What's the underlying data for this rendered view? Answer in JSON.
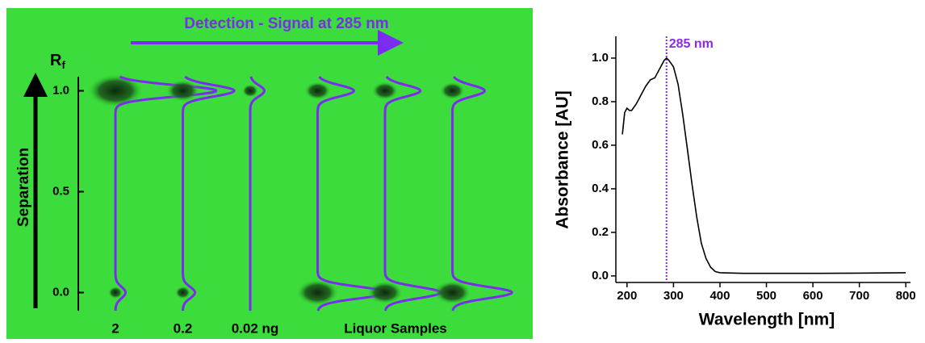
{
  "chart_data": [
    {
      "type": "densitogram",
      "title": "Detection - Signal at 285 nm",
      "ylabel": "R",
      "ylabel_subscript": "f",
      "side_label": "Separation",
      "ylim": [
        -0.09,
        1.07
      ],
      "yticks": [
        {
          "value": 0,
          "label": "0.0"
        },
        {
          "value": 0.5,
          "label": "0.5"
        },
        {
          "value": 1,
          "label": "1.0"
        }
      ],
      "trace_color": "#7b2cf0",
      "group_label": "Liquor Samples",
      "lanes": [
        {
          "label": "2",
          "peaks": [
            {
              "rf": 1,
              "signal": 1.0
            },
            {
              "rf": 0,
              "signal": 0.1
            }
          ]
        },
        {
          "label": "0.2",
          "peaks": [
            {
              "rf": 1,
              "signal": 0.51
            },
            {
              "rf": 0,
              "signal": 0.12
            }
          ]
        },
        {
          "label": "0.02 ng",
          "peaks": [
            {
              "rf": 1,
              "signal": 0.14
            }
          ]
        },
        {
          "label": null,
          "peaks": [
            {
              "rf": 1,
              "signal": 0.36
            },
            {
              "rf": 0,
              "signal": 0.7
            }
          ]
        },
        {
          "label": null,
          "peaks": [
            {
              "rf": 1,
              "signal": 0.35
            },
            {
              "rf": 0,
              "signal": 0.55
            }
          ]
        },
        {
          "label": null,
          "peaks": [
            {
              "rf": 1,
              "signal": 0.32
            },
            {
              "rf": 0,
              "signal": 0.59
            }
          ]
        }
      ]
    },
    {
      "type": "line",
      "xlabel": "Wavelength [nm]",
      "ylabel": "Absorbance [AU]",
      "xlim": [
        176,
        810
      ],
      "ylim": [
        -0.03,
        1.1
      ],
      "xticks": [
        200,
        300,
        400,
        500,
        600,
        700,
        800
      ],
      "yticks": [
        {
          "value": 0,
          "label": "0.0"
        },
        {
          "value": 0.2,
          "label": "0.2"
        },
        {
          "value": 0.4,
          "label": "0.4"
        },
        {
          "value": 0.6,
          "label": "0.6"
        },
        {
          "value": 0.8,
          "label": "0.8"
        },
        {
          "value": 1,
          "label": "1.0"
        }
      ],
      "annotation": {
        "text": "285 nm",
        "x": 285,
        "color": "#8a2be2"
      },
      "color": "#000000",
      "x": [
        190,
        195,
        200,
        205,
        210,
        220,
        230,
        240,
        250,
        260,
        270,
        280,
        285,
        290,
        300,
        310,
        320,
        330,
        340,
        350,
        360,
        370,
        380,
        390,
        400,
        450,
        500,
        600,
        700,
        800
      ],
      "values": [
        0.65,
        0.75,
        0.77,
        0.76,
        0.76,
        0.79,
        0.83,
        0.87,
        0.9,
        0.91,
        0.95,
        0.99,
        1.0,
        0.99,
        0.96,
        0.88,
        0.74,
        0.58,
        0.42,
        0.27,
        0.15,
        0.08,
        0.04,
        0.02,
        0.015,
        0.012,
        0.012,
        0.012,
        0.013,
        0.015
      ]
    }
  ]
}
